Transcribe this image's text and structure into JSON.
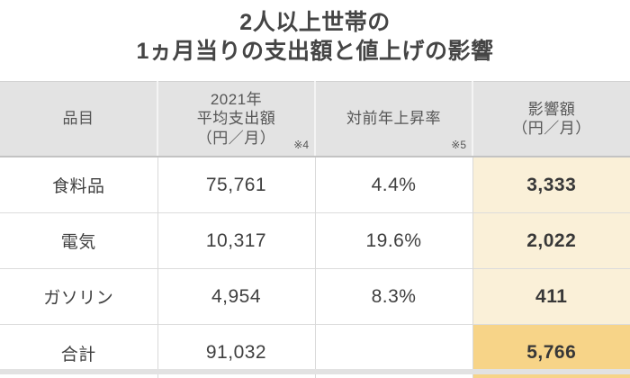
{
  "title": {
    "line1": "2人以上世帯の",
    "line2": "1ヵ月当りの支出額と値上げの影響"
  },
  "table": {
    "header": {
      "item": "品目",
      "spend_line1": "2021年",
      "spend_line2": "平均支出額",
      "spend_line3": "（円／月）",
      "spend_note": "※4",
      "rate": "対前年上昇率",
      "rate_note": "※5",
      "impact_line1": "影響額",
      "impact_line2": "（円／月）"
    },
    "rows": [
      {
        "item": "食料品",
        "spend": "75,761",
        "rate": "4.4%",
        "impact": "3,333"
      },
      {
        "item": "電気",
        "spend": "10,317",
        "rate": "19.6%",
        "impact": "2,022"
      },
      {
        "item": "ガソリン",
        "spend": "4,954",
        "rate": "8.3%",
        "impact": "411"
      },
      {
        "item": "合計",
        "spend": "91,032",
        "rate": "",
        "impact": "5,766"
      }
    ]
  },
  "colors": {
    "title_color": "#454545",
    "header_bg": "#e3e3e3",
    "header_text": "#555555",
    "body_text": "#3f3f3f",
    "impact_bg": "#faf0d8",
    "impact_total_bg": "#f7d488",
    "impact_text": "#383838",
    "bottom_bar": "#e2e2e2"
  },
  "chart_data": {
    "type": "table",
    "title": "2人以上世帯の1ヵ月当りの支出額と値上げの影響",
    "columns": [
      "品目",
      "2021年平均支出額（円／月）※4",
      "対前年上昇率※5",
      "影響額（円／月）"
    ],
    "rows": [
      {
        "品目": "食料品",
        "平均支出額_円月": 75761,
        "対前年上昇率": "4.4%",
        "影響額_円月": 3333
      },
      {
        "品目": "電気",
        "平均支出額_円月": 10317,
        "対前年上昇率": "19.6%",
        "影響額_円月": 2022
      },
      {
        "品目": "ガソリン",
        "平均支出額_円月": 4954,
        "対前年上昇率": "8.3%",
        "影響額_円月": 411
      },
      {
        "品目": "合計",
        "平均支出額_円月": 91032,
        "対前年上昇率": "",
        "影響額_円月": 5766
      }
    ],
    "notes": [
      "※4",
      "※5"
    ],
    "highlight_column": "影響額（円／月）"
  }
}
